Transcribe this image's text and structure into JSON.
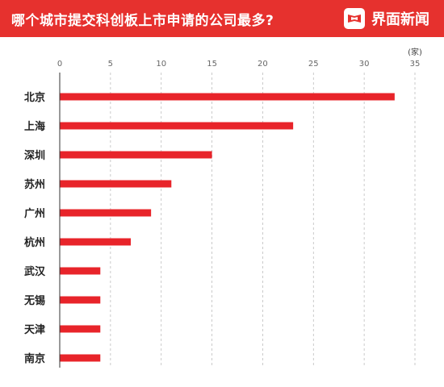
{
  "header": {
    "title": "哪个城市提交科创板上市申请的公司最多?",
    "brand": "界面新闻",
    "background": "#e6312e"
  },
  "chart_data": {
    "type": "bar",
    "orientation": "horizontal",
    "title": "哪个城市提交科创板上市申请的公司最多?",
    "unit": "(家)",
    "categories": [
      "北京",
      "上海",
      "深圳",
      "苏州",
      "广州",
      "杭州",
      "武汉",
      "无锡",
      "天津",
      "南京"
    ],
    "values": [
      33,
      23,
      15,
      11,
      9,
      7,
      4,
      4,
      4,
      4
    ],
    "xlim": [
      0,
      35
    ],
    "xticks": [
      0,
      5,
      10,
      15,
      20,
      25,
      30,
      35
    ],
    "grid": true,
    "bar_color": "#e8242a"
  }
}
